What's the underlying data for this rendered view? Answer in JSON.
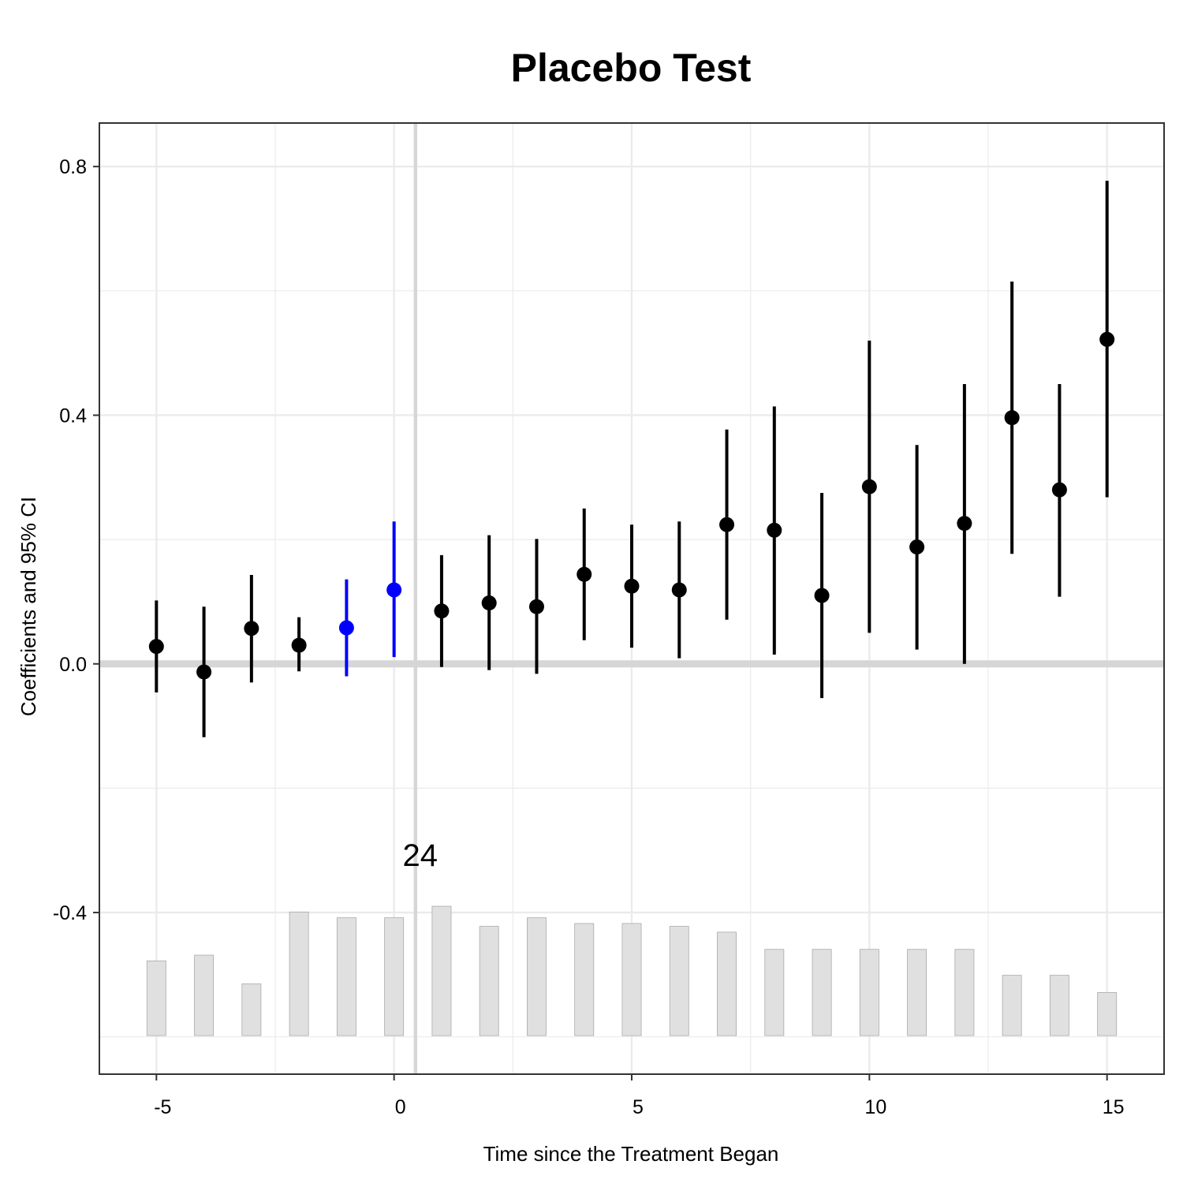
{
  "chart_data": {
    "type": "scatter",
    "title": "Placebo Test",
    "xlabel": "Time since the Treatment Began",
    "ylabel": "Coefficients and 95% CI",
    "xlim": [
      -6.2,
      16.2
    ],
    "ylim": [
      -0.66,
      0.87
    ],
    "x_ticks": [
      -5,
      0,
      5,
      10,
      15
    ],
    "x_tick_labels": [
      "-5",
      "0",
      "5",
      "10",
      "15"
    ],
    "y_ticks": [
      0.8,
      0.4,
      0.0,
      -0.4
    ],
    "y_tick_labels": [
      "0.8",
      "0.4",
      "0.0",
      "-0.4"
    ],
    "grid": true,
    "reference_hline": 0.0,
    "reference_vline": 0.45,
    "colors": {
      "estimate": "#000000",
      "placebo": "#0000ff",
      "bar_fill": "#e0e0e0",
      "bar_stroke": "#aaaaaa",
      "grid": "#ebebeb",
      "reference": "#d6d6d6",
      "panel_border": "#333333"
    },
    "series": [
      {
        "x": [
          -5,
          -4,
          -3,
          -2,
          1,
          2,
          3,
          4,
          5,
          6,
          7,
          8,
          9,
          10,
          11,
          12,
          13,
          14,
          15
        ],
        "y": [
          0.028,
          -0.013,
          0.057,
          0.03,
          0.085,
          0.098,
          0.092,
          0.144,
          0.125,
          0.119,
          0.224,
          0.215,
          0.11,
          0.285,
          0.188,
          0.226,
          0.396,
          0.28,
          0.522
        ],
        "lower": [
          -0.046,
          -0.118,
          -0.03,
          -0.012,
          -0.005,
          -0.01,
          -0.016,
          0.038,
          0.026,
          0.009,
          0.071,
          0.015,
          -0.055,
          0.05,
          0.023,
          0.0,
          0.177,
          0.108,
          0.268
        ],
        "upper": [
          0.102,
          0.092,
          0.143,
          0.075,
          0.175,
          0.207,
          0.201,
          0.25,
          0.224,
          0.229,
          0.377,
          0.414,
          0.275,
          0.52,
          0.352,
          0.45,
          0.615,
          0.45,
          0.777
        ]
      },
      {
        "x": [
          -1,
          0
        ],
        "y": [
          0.058,
          0.119
        ],
        "lower": [
          -0.02,
          0.011
        ],
        "upper": [
          0.136,
          0.229
        ]
      }
    ],
    "count_bars": {
      "x": [
        -5,
        -4,
        -3,
        -2,
        -1,
        0,
        1,
        2,
        3,
        4,
        5,
        6,
        7,
        8,
        9,
        10,
        11,
        12,
        13,
        14,
        15
      ],
      "values": [
        13,
        14,
        9,
        21.5,
        20.5,
        20.5,
        22.5,
        19,
        20.5,
        19.5,
        19.5,
        19,
        18,
        15,
        15,
        15,
        15,
        15,
        10.5,
        10.5,
        7.5
      ],
      "baseline": -0.598,
      "max_top": -0.376,
      "max_count": 24
    },
    "annotations": [
      {
        "text": "24",
        "x": 0.55,
        "y": -0.325
      }
    ]
  }
}
